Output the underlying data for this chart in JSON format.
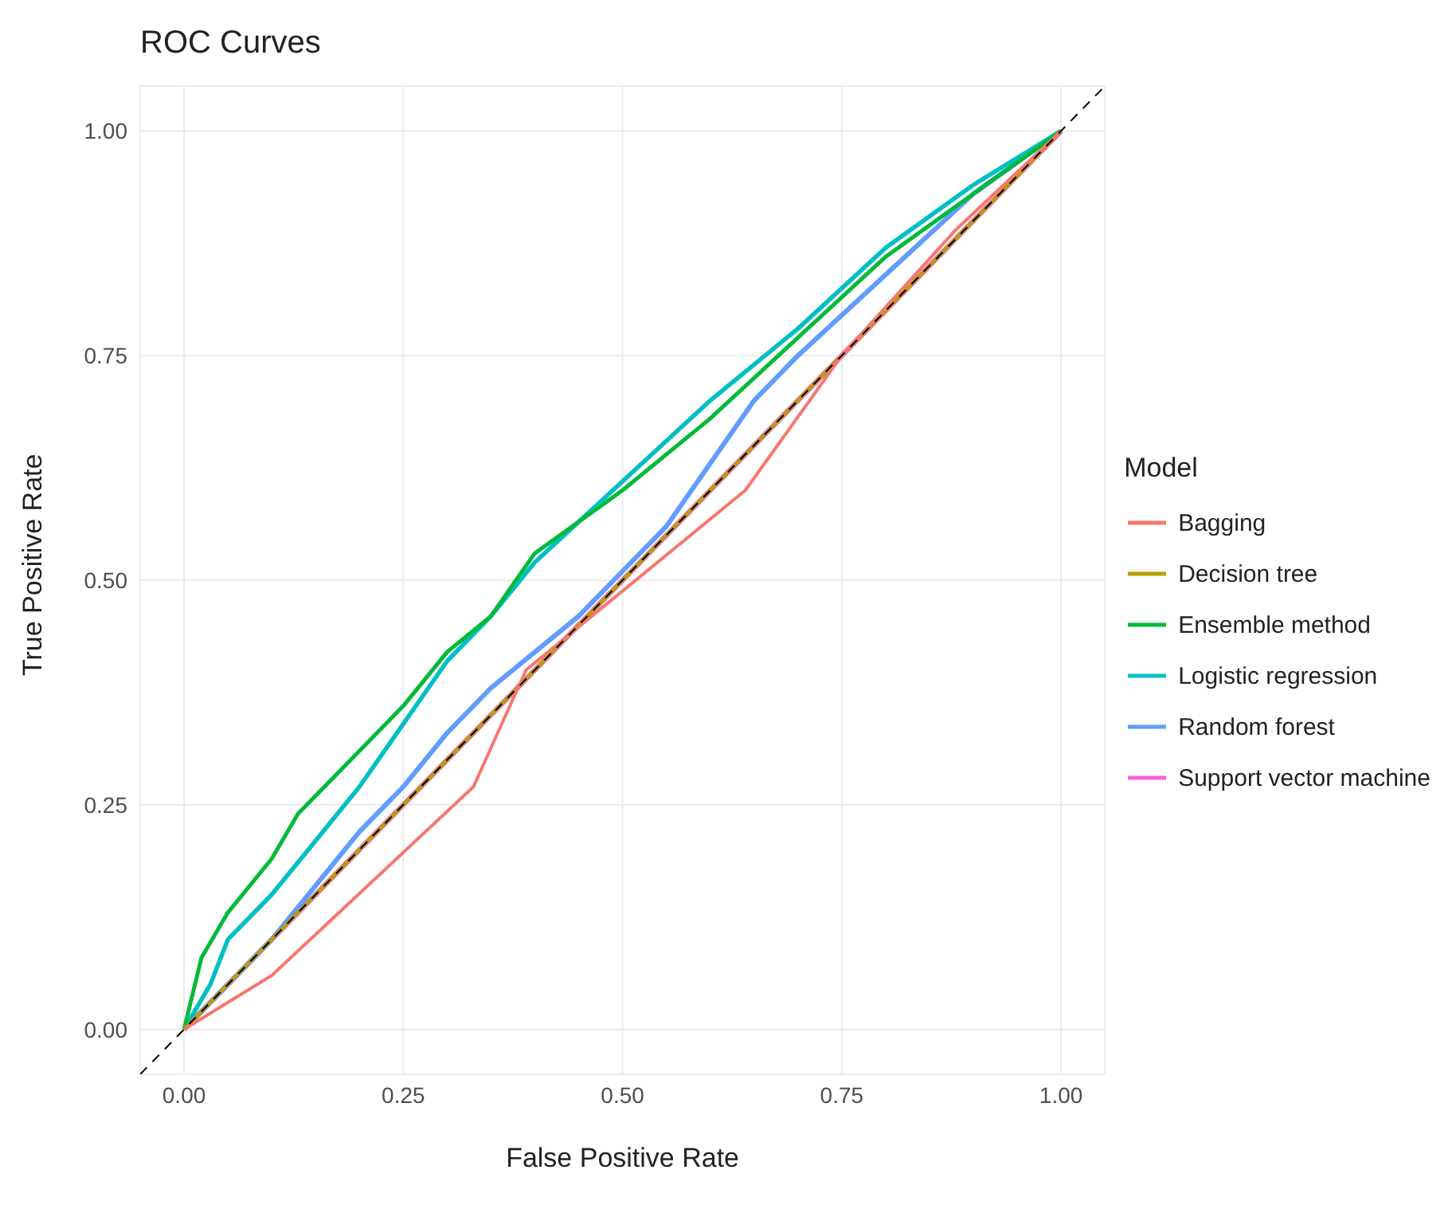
{
  "chart_data": {
    "type": "line",
    "title": "ROC Curves",
    "xlabel": "False Positive Rate",
    "ylabel": "True Positive Rate",
    "legend_title": "Model",
    "legend": "right",
    "grid": true,
    "marker": "none",
    "xlim": [
      -0.05,
      1.05
    ],
    "ylim": [
      -0.05,
      1.05
    ],
    "xticks": [
      {
        "value": 0,
        "label": "0.00"
      },
      {
        "value": 0.25,
        "label": "0.25"
      },
      {
        "value": 0.5,
        "label": "0.50"
      },
      {
        "value": 0.75,
        "label": "0.75"
      },
      {
        "value": 1,
        "label": "1.00"
      }
    ],
    "yticks": [
      {
        "value": 0,
        "label": "0.00"
      },
      {
        "value": 0.25,
        "label": "0.25"
      },
      {
        "value": 0.5,
        "label": "0.50"
      },
      {
        "value": 0.75,
        "label": "0.75"
      },
      {
        "value": 1,
        "label": "1.00"
      }
    ],
    "series": [
      {
        "name": "Bagging",
        "color": "#f8766d",
        "x": [
          0,
          0.1,
          0.33,
          0.39,
          0.64,
          0.75,
          0.88,
          1
        ],
        "values": [
          0,
          0.06,
          0.27,
          0.4,
          0.6,
          0.75,
          0.89,
          1
        ]
      },
      {
        "name": "Decision tree",
        "color": "#b79f00",
        "x": [
          0,
          1
        ],
        "values": [
          0,
          1
        ]
      },
      {
        "name": "Ensemble method",
        "color": "#00ba38",
        "x": [
          0,
          0.02,
          0.05,
          0.1,
          0.13,
          0.2,
          0.25,
          0.3,
          0.35,
          0.4,
          0.5,
          0.6,
          0.7,
          0.8,
          0.9,
          1
        ],
        "values": [
          0,
          0.08,
          0.13,
          0.19,
          0.24,
          0.31,
          0.36,
          0.42,
          0.46,
          0.53,
          0.6,
          0.68,
          0.77,
          0.86,
          0.93,
          1
        ]
      },
      {
        "name": "Logistic regression",
        "color": "#00bfc4",
        "x": [
          0,
          0.03,
          0.05,
          0.1,
          0.15,
          0.2,
          0.25,
          0.3,
          0.35,
          0.4,
          0.5,
          0.6,
          0.7,
          0.8,
          0.9,
          1
        ],
        "values": [
          0,
          0.05,
          0.1,
          0.15,
          0.21,
          0.27,
          0.34,
          0.41,
          0.46,
          0.52,
          0.61,
          0.7,
          0.78,
          0.87,
          0.94,
          1
        ]
      },
      {
        "name": "Random forest",
        "color": "#619cff",
        "x": [
          0,
          0.05,
          0.1,
          0.2,
          0.25,
          0.3,
          0.35,
          0.4,
          0.45,
          0.5,
          0.55,
          0.6,
          0.65,
          0.7,
          0.8,
          0.9,
          1
        ],
        "values": [
          0,
          0.05,
          0.1,
          0.22,
          0.27,
          0.33,
          0.38,
          0.42,
          0.46,
          0.51,
          0.56,
          0.63,
          0.7,
          0.75,
          0.84,
          0.93,
          1
        ]
      },
      {
        "name": "Support vector machine",
        "color": "#f564e3",
        "x": [
          0,
          1
        ],
        "values": [
          0,
          1
        ]
      },
      {
        "color": "#000000",
        "line_style": "dashed",
        "x": [
          -0.05,
          1.05
        ],
        "values": [
          -0.05,
          1.05
        ]
      }
    ]
  }
}
